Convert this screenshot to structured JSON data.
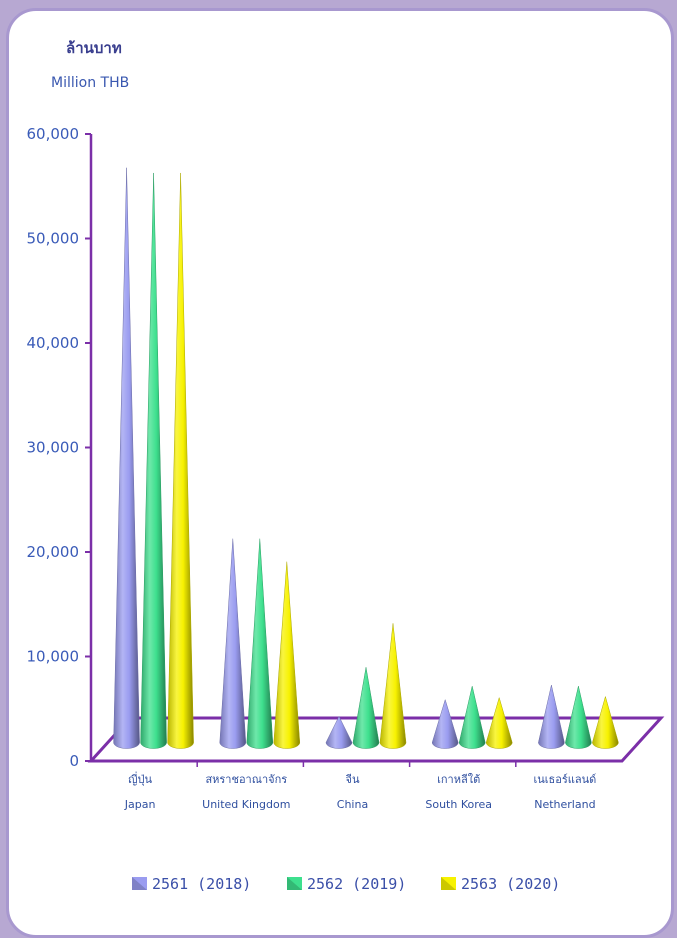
{
  "chart_data": {
    "type": "bar",
    "unit_label_th": "ล้านบาท",
    "unit_label_en": "Million THB",
    "ylim": [
      0,
      60000
    ],
    "yticks": [
      "0",
      "10,000",
      "20,000",
      "30,000",
      "40,000",
      "50,000",
      "60,000"
    ],
    "categories": [
      {
        "th": "ญี่ปุ่น",
        "en": "Japan"
      },
      {
        "th": "สหราชอาณาจักร",
        "en": "United Kingdom"
      },
      {
        "th": "จีน",
        "en": "China"
      },
      {
        "th": "เกาหลีใต้",
        "en": "South Korea"
      },
      {
        "th": "เนเธอร์แลนด์",
        "en": "Netherland"
      }
    ],
    "series": [
      {
        "name": "2561  (2018)",
        "color": "#9a9cf0",
        "values": [
          55000,
          19500,
          2500,
          4100,
          5500
        ]
      },
      {
        "name": "2562  (2019)",
        "color": "#3ee08e",
        "values": [
          54500,
          19500,
          7200,
          5400,
          5400
        ]
      },
      {
        "name": "2563  (2020)",
        "color": "#f7f200",
        "values": [
          54500,
          17300,
          11400,
          4300,
          4400
        ]
      }
    ],
    "legend_position": "bottom",
    "grid": false
  }
}
